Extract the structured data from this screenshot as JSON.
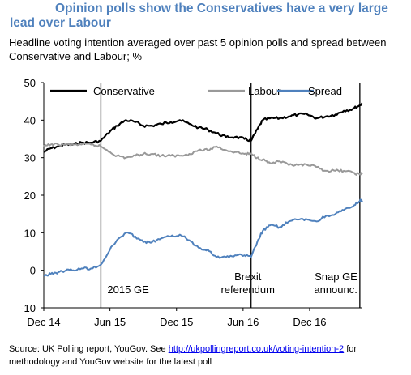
{
  "title_line1": "Opinion polls show the Conservatives have a very large",
  "title_line2": "lead   over Labour",
  "subtitle": "Headline voting intention averaged over past 5 opinion polls and spread between Conservative and Labour; %",
  "source": {
    "prefix": "Source: UK Polling report, YouGov. See ",
    "link": "http://ukpollingreport.co.uk/voting-intention-2",
    "suffix": " for methodology and YouGov website for the latest poll"
  },
  "chart_data": {
    "type": "line",
    "xlabel": "",
    "ylabel": "",
    "x_ticks": [
      "Dec 14",
      "Jun 15",
      "Dec 15",
      "Jun 16",
      "Dec 16"
    ],
    "x_tick_dates": [
      "2014-12-01",
      "2015-06-01",
      "2015-12-01",
      "2016-06-01",
      "2016-12-01"
    ],
    "xlim": [
      "2014-12-01",
      "2017-04-25"
    ],
    "ylim": [
      -10,
      50
    ],
    "y_ticks": [
      -10,
      0,
      10,
      20,
      30,
      40,
      50
    ],
    "grid": false,
    "legend_position": "top",
    "series": [
      {
        "name": "Conservative",
        "color": "#000000",
        "points": [
          [
            "2014-12-01",
            31.5
          ],
          [
            "2014-12-20",
            32.5
          ],
          [
            "2015-01-10",
            33
          ],
          [
            "2015-01-31",
            33.5
          ],
          [
            "2015-02-20",
            33.5
          ],
          [
            "2015-03-15",
            34
          ],
          [
            "2015-04-10",
            34
          ],
          [
            "2015-05-07",
            34.5
          ],
          [
            "2015-06-01",
            37
          ],
          [
            "2015-06-20",
            38.5
          ],
          [
            "2015-07-15",
            40
          ],
          [
            "2015-08-10",
            39.5
          ],
          [
            "2015-09-01",
            38.5
          ],
          [
            "2015-09-25",
            38.5
          ],
          [
            "2015-10-20",
            39
          ],
          [
            "2015-11-15",
            39.5
          ],
          [
            "2015-12-10",
            40
          ],
          [
            "2016-01-05",
            39
          ],
          [
            "2016-01-31",
            38
          ],
          [
            "2016-02-25",
            37.5
          ],
          [
            "2016-03-20",
            36.5
          ],
          [
            "2016-04-15",
            35.5
          ],
          [
            "2016-05-10",
            35.5
          ],
          [
            "2016-06-05",
            35
          ],
          [
            "2016-06-23",
            34.5
          ],
          [
            "2016-07-10",
            37.5
          ],
          [
            "2016-07-25",
            40
          ],
          [
            "2016-08-15",
            40.5
          ],
          [
            "2016-09-10",
            40.5
          ],
          [
            "2016-10-05",
            41
          ],
          [
            "2016-10-30",
            41.5
          ],
          [
            "2016-11-25",
            41.5
          ],
          [
            "2016-12-20",
            40.5
          ],
          [
            "2017-01-15",
            41
          ],
          [
            "2017-02-10",
            41.5
          ],
          [
            "2017-03-05",
            42.5
          ],
          [
            "2017-03-30",
            43
          ],
          [
            "2017-04-18",
            44
          ],
          [
            "2017-04-25",
            44.5
          ]
        ]
      },
      {
        "name": "Labour",
        "color": "#999999",
        "points": [
          [
            "2014-12-01",
            33
          ],
          [
            "2014-12-20",
            33.5
          ],
          [
            "2015-01-10",
            33.5
          ],
          [
            "2015-01-31",
            33.5
          ],
          [
            "2015-02-20",
            33.5
          ],
          [
            "2015-03-15",
            33.5
          ],
          [
            "2015-04-10",
            33.5
          ],
          [
            "2015-05-07",
            33
          ],
          [
            "2015-06-01",
            31.5
          ],
          [
            "2015-06-20",
            30.5
          ],
          [
            "2015-07-15",
            30
          ],
          [
            "2015-08-10",
            30.5
          ],
          [
            "2015-09-01",
            31
          ],
          [
            "2015-09-25",
            31
          ],
          [
            "2015-10-20",
            30.5
          ],
          [
            "2015-11-15",
            30.5
          ],
          [
            "2015-12-10",
            30.5
          ],
          [
            "2016-01-05",
            31
          ],
          [
            "2016-01-31",
            32
          ],
          [
            "2016-02-25",
            32
          ],
          [
            "2016-03-20",
            33
          ],
          [
            "2016-04-15",
            32
          ],
          [
            "2016-05-10",
            31.5
          ],
          [
            "2016-06-05",
            31
          ],
          [
            "2016-06-23",
            31
          ],
          [
            "2016-07-10",
            30
          ],
          [
            "2016-07-25",
            29.5
          ],
          [
            "2016-08-15",
            28.5
          ],
          [
            "2016-09-10",
            29
          ],
          [
            "2016-10-05",
            28
          ],
          [
            "2016-10-30",
            28
          ],
          [
            "2016-11-25",
            28
          ],
          [
            "2016-12-20",
            27.5
          ],
          [
            "2017-01-15",
            26.5
          ],
          [
            "2017-02-10",
            26.5
          ],
          [
            "2017-03-05",
            26.5
          ],
          [
            "2017-03-30",
            26
          ],
          [
            "2017-04-18",
            25.5
          ],
          [
            "2017-04-25",
            26
          ]
        ]
      },
      {
        "name": "Spread",
        "color": "#4f81bd",
        "points": [
          [
            "2014-12-01",
            -1.5
          ],
          [
            "2014-12-20",
            -1
          ],
          [
            "2015-01-10",
            -0.5
          ],
          [
            "2015-01-31",
            0
          ],
          [
            "2015-02-20",
            0
          ],
          [
            "2015-03-15",
            0.5
          ],
          [
            "2015-04-10",
            0.5
          ],
          [
            "2015-05-07",
            1.5
          ],
          [
            "2015-06-01",
            5.5
          ],
          [
            "2015-06-20",
            8
          ],
          [
            "2015-07-15",
            10
          ],
          [
            "2015-08-10",
            9
          ],
          [
            "2015-09-01",
            7.5
          ],
          [
            "2015-09-25",
            7.5
          ],
          [
            "2015-10-20",
            8.5
          ],
          [
            "2015-11-15",
            9
          ],
          [
            "2015-12-10",
            9.5
          ],
          [
            "2016-01-05",
            8
          ],
          [
            "2016-01-31",
            6
          ],
          [
            "2016-02-25",
            5.5
          ],
          [
            "2016-03-20",
            3.5
          ],
          [
            "2016-04-15",
            3.5
          ],
          [
            "2016-05-10",
            4
          ],
          [
            "2016-06-05",
            4
          ],
          [
            "2016-06-23",
            3.5
          ],
          [
            "2016-07-10",
            7.5
          ],
          [
            "2016-07-25",
            10.5
          ],
          [
            "2016-08-15",
            12
          ],
          [
            "2016-09-10",
            11.5
          ],
          [
            "2016-10-05",
            13
          ],
          [
            "2016-10-30",
            13.5
          ],
          [
            "2016-11-25",
            13.5
          ],
          [
            "2016-12-20",
            13
          ],
          [
            "2017-01-15",
            14.5
          ],
          [
            "2017-02-10",
            15
          ],
          [
            "2017-03-05",
            16
          ],
          [
            "2017-03-30",
            17
          ],
          [
            "2017-04-18",
            18.5
          ],
          [
            "2017-04-25",
            18.5
          ]
        ]
      }
    ],
    "event_lines": [
      {
        "date": "2015-05-07",
        "label_lines": [
          "2015 GE"
        ]
      },
      {
        "date": "2016-06-23",
        "label_lines": [
          "Brexit",
          "referendum"
        ]
      },
      {
        "date": "2017-04-18",
        "label_lines": [
          "Snap GE",
          "announc."
        ]
      }
    ]
  }
}
